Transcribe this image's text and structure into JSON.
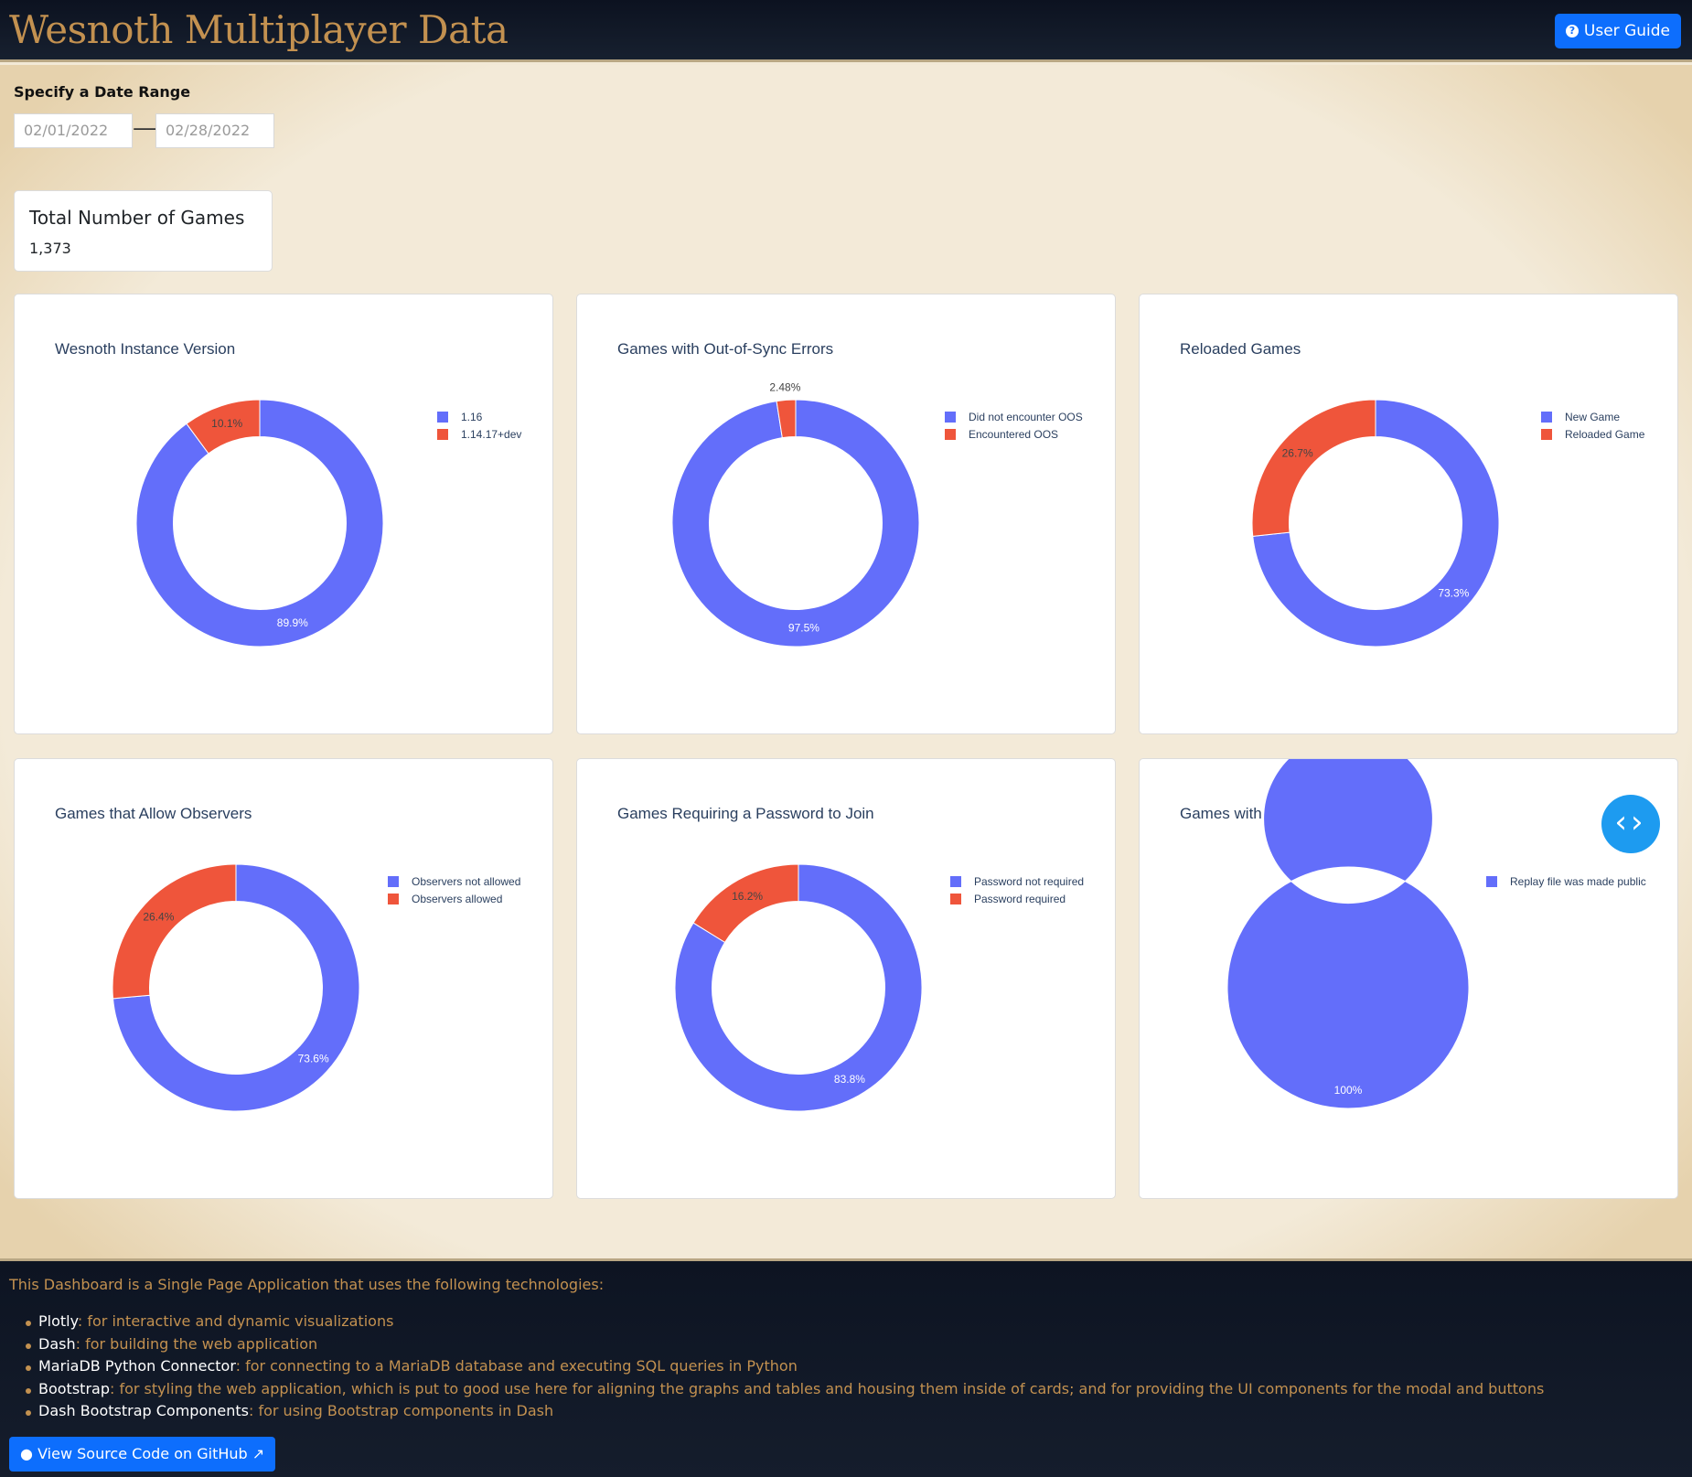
{
  "header": {
    "title": "Wesnoth Multiplayer Data",
    "user_guide_label": "User Guide",
    "user_guide_icon": "question-circle-icon"
  },
  "date_range": {
    "label": "Specify a Date Range",
    "start": "02/01/2022",
    "end": "02/28/2022",
    "separator": "⟶"
  },
  "total_games": {
    "title": "Total Number of Games",
    "value": "1,373"
  },
  "colors": {
    "blue": "#636efa",
    "red": "#ef553b"
  },
  "charts": [
    {
      "title": "Wesnoth Instance Version",
      "labels": [
        "1.16",
        "1.14.17+dev"
      ],
      "percent_labels": [
        "89.9%",
        "10.1%"
      ]
    },
    {
      "title": "Games with Out-of-Sync Errors",
      "labels": [
        "Did not encounter OOS",
        "Encountered OOS"
      ],
      "percent_labels": [
        "97.5%",
        "2.48%"
      ]
    },
    {
      "title": "Reloaded Games",
      "labels": [
        "New Game",
        "Reloaded Game"
      ],
      "percent_labels": [
        "73.3%",
        "26.7%"
      ]
    },
    {
      "title": "Games that Allow Observers",
      "labels": [
        "Observers not allowed",
        "Observers allowed"
      ],
      "percent_labels": [
        "73.6%",
        "26.4%"
      ]
    },
    {
      "title": "Games Requiring a Password to Join",
      "labels": [
        "Password not required",
        "Password required"
      ],
      "percent_labels": [
        "83.8%",
        "16.2%"
      ]
    },
    {
      "title": "Games with a Public Replay File",
      "labels": [
        "Replay file was made public"
      ],
      "percent_labels": [
        "100%"
      ]
    }
  ],
  "chart_data": [
    {
      "type": "pie",
      "title": "Wesnoth Instance Version",
      "labels": [
        "1.16",
        "1.14.17+dev"
      ],
      "values": [
        89.9,
        10.1
      ],
      "hole": true,
      "legend": "top-right"
    },
    {
      "type": "pie",
      "title": "Games with Out-of-Sync Errors",
      "labels": [
        "Did not encounter OOS",
        "Encountered OOS"
      ],
      "values": [
        97.52,
        2.48
      ],
      "hole": true,
      "legend": "top-right"
    },
    {
      "type": "pie",
      "title": "Reloaded Games",
      "labels": [
        "New Game",
        "Reloaded Game"
      ],
      "values": [
        73.3,
        26.7
      ],
      "hole": true,
      "legend": "top-right"
    },
    {
      "type": "pie",
      "title": "Games that Allow Observers",
      "labels": [
        "Observers not allowed",
        "Observers allowed"
      ],
      "values": [
        73.6,
        26.4
      ],
      "hole": true,
      "legend": "top-right"
    },
    {
      "type": "pie",
      "title": "Games Requiring a Password to Join",
      "labels": [
        "Password not required",
        "Password required"
      ],
      "values": [
        83.8,
        16.2
      ],
      "hole": true,
      "legend": "top-right"
    },
    {
      "type": "pie",
      "title": "Games with a Public Replay File",
      "labels": [
        "Replay file was made public"
      ],
      "values": [
        100
      ],
      "hole": true,
      "legend": "top-right"
    }
  ],
  "float_button": {
    "icon": "code-brackets-icon",
    "glyph": "‹›"
  },
  "footer": {
    "intro": "This Dashboard is a Single Page Application that uses the following technologies:",
    "technologies": [
      {
        "name": "Plotly",
        "description": ": for interactive and dynamic visualizations"
      },
      {
        "name": "Dash",
        "description": ": for building the web application"
      },
      {
        "name": "MariaDB Python Connector",
        "description": ": for connecting to a MariaDB database and executing SQL queries in Python"
      },
      {
        "name": "Bootstrap",
        "description": ": for styling the web application, which is put to good use here for aligning the graphs and tables and housing them inside of cards; and for providing the UI components for the modal and buttons"
      },
      {
        "name": "Dash Bootstrap Components",
        "description": ": for using Bootstrap components in Dash"
      }
    ],
    "github_label": "View Source Code on GitHub",
    "github_icon": "github-icon",
    "external_icon": "external-link-icon"
  }
}
